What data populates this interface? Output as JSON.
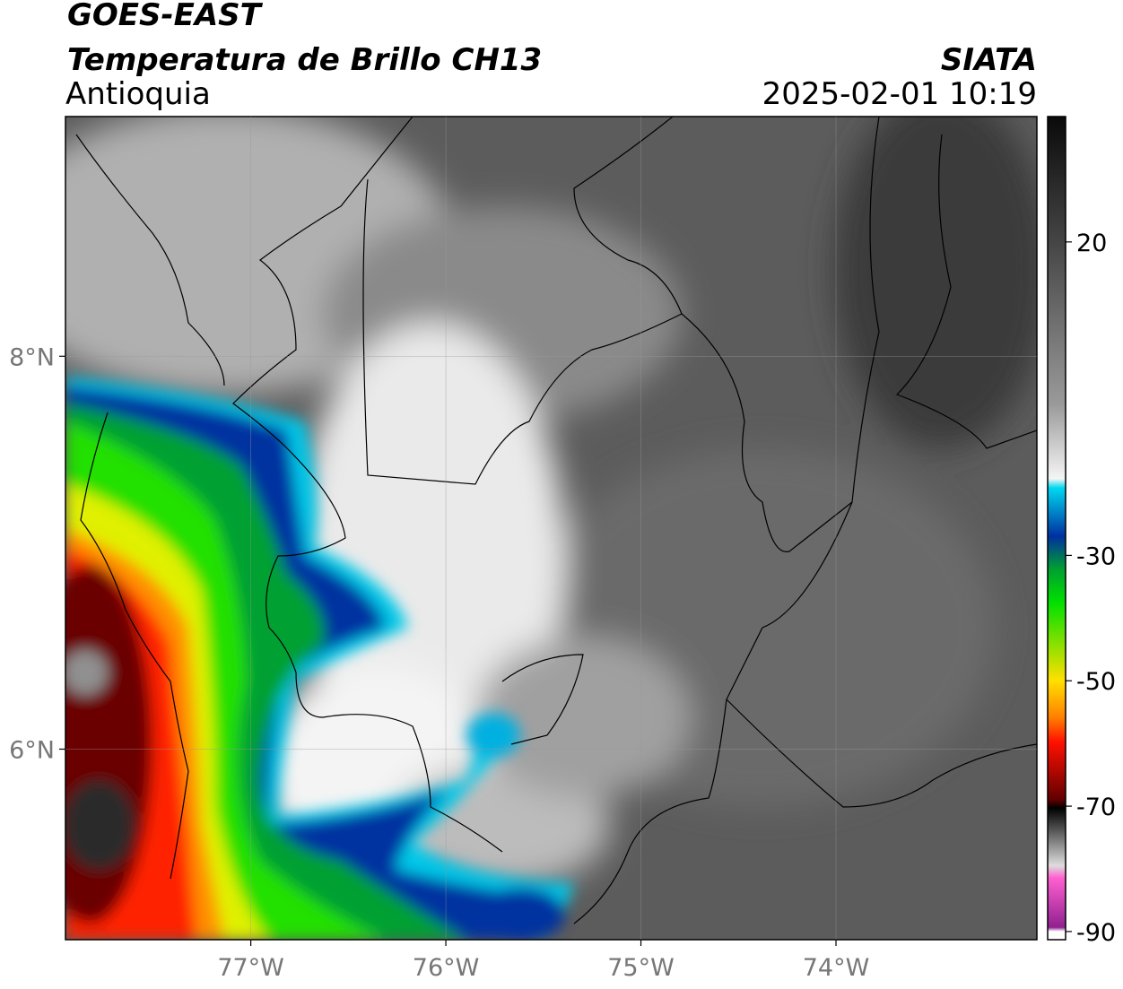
{
  "header": {
    "title": "GOES-EAST",
    "subtitle": "Temperatura de Brillo CH13",
    "region": "Antioquia",
    "source": "SIATA",
    "datetime": "2025-02-01 10:19"
  },
  "map": {
    "xlim": [
      -77.95,
      -72.97
    ],
    "ylim": [
      5.03,
      9.22
    ],
    "xticks": [
      {
        "value": -77,
        "label": "77°W"
      },
      {
        "value": -76,
        "label": "76°W"
      },
      {
        "value": -75,
        "label": "75°W"
      },
      {
        "value": -74,
        "label": "74°W"
      }
    ],
    "yticks": [
      {
        "value": 6,
        "label": "6°N"
      },
      {
        "value": 8,
        "label": "8°N"
      }
    ],
    "grid": true,
    "colorbar": {
      "lim": [
        -91.3,
        40
      ],
      "ticks": [
        20,
        -30,
        -50,
        -70,
        -90
      ]
    }
  }
}
